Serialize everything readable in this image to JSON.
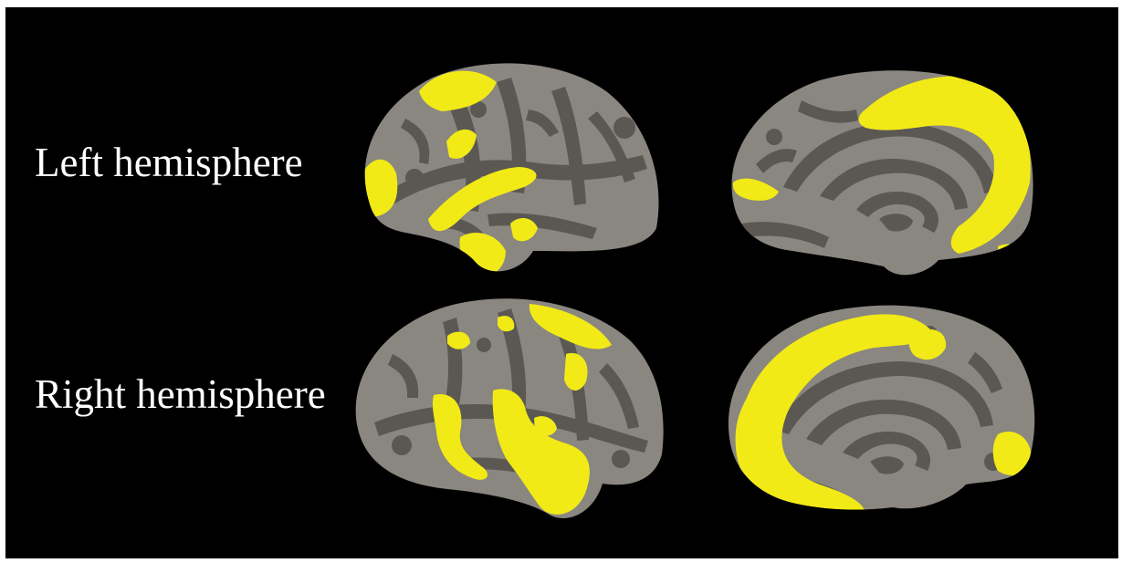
{
  "figure": {
    "background_color": "#000000",
    "labels": {
      "left_hemisphere": "Left hemisphere",
      "right_hemisphere": "Right hemisphere"
    }
  },
  "colors": {
    "cortex_gyri": "#8a8680",
    "cortex_sulci": "#5b5853",
    "activation": "#f2ea16"
  },
  "views": [
    {
      "hemisphere": "left",
      "view": "lateral"
    },
    {
      "hemisphere": "left",
      "view": "medial"
    },
    {
      "hemisphere": "right",
      "view": "lateral"
    },
    {
      "hemisphere": "right",
      "view": "medial"
    }
  ]
}
